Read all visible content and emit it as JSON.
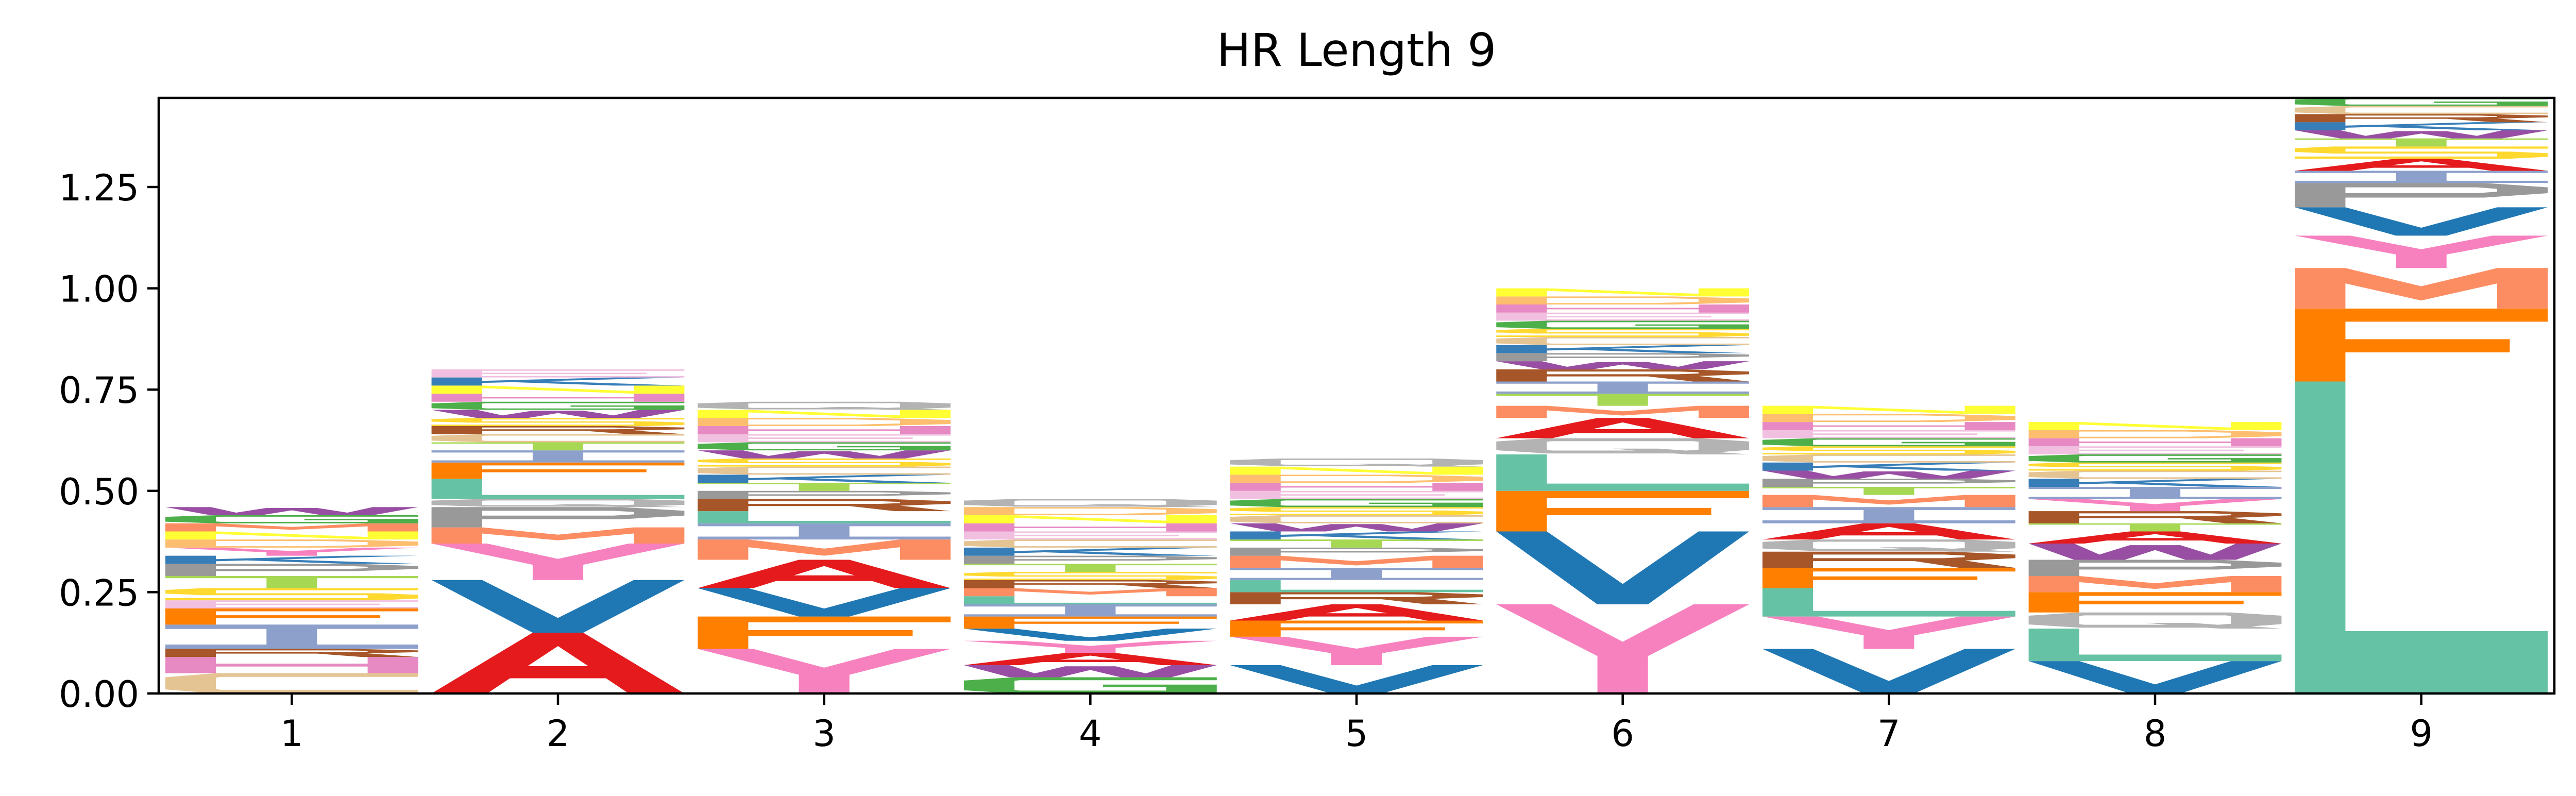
{
  "chart_data": {
    "type": "sequence-logo",
    "title": "HR Length 9",
    "xlabel": "",
    "ylabel": "",
    "ylim": [
      0,
      1.47
    ],
    "yticks": [
      {
        "value": 0.0,
        "label": "0.00"
      },
      {
        "value": 0.25,
        "label": "0.25"
      },
      {
        "value": 0.5,
        "label": "0.50"
      },
      {
        "value": 0.75,
        "label": "0.75"
      },
      {
        "value": 1.0,
        "label": "1.00"
      },
      {
        "value": 1.25,
        "label": "1.25"
      }
    ],
    "xticks": [
      "1",
      "2",
      "3",
      "4",
      "5",
      "6",
      "7",
      "8",
      "9"
    ],
    "colors": {
      "A": "#e41a1c",
      "V": "#1f78b4",
      "L": "#66c2a5",
      "I": "#8da0cb",
      "F": "#ff7f00",
      "M": "#fc8d62",
      "Y": "#f781bf",
      "G": "#4daf4a",
      "W": "#984ea3",
      "P": "#999999",
      "S": "#ffd92f",
      "T": "#a6d854",
      "C": "#e5c494",
      "R": "#a65628",
      "K": "#377eb8",
      "E": "#f1c0e0",
      "Q": "#b3b3b3",
      "N": "#ffff33",
      "H": "#e78ac3",
      "D": "#fdbf6f"
    },
    "positions": [
      {
        "position": "1",
        "letters": [
          {
            "letter": "C",
            "height": 0.05
          },
          {
            "letter": "H",
            "height": 0.04
          },
          {
            "letter": "R",
            "height": 0.02
          },
          {
            "letter": "I",
            "height": 0.06
          },
          {
            "letter": "F",
            "height": 0.04
          },
          {
            "letter": "E",
            "height": 0.02
          },
          {
            "letter": "S",
            "height": 0.03
          },
          {
            "letter": "T",
            "height": 0.03
          },
          {
            "letter": "P",
            "height": 0.03
          },
          {
            "letter": "K",
            "height": 0.02
          },
          {
            "letter": "Y",
            "height": 0.02
          },
          {
            "letter": "D",
            "height": 0.02
          },
          {
            "letter": "N",
            "height": 0.02
          },
          {
            "letter": "M",
            "height": 0.02
          },
          {
            "letter": "G",
            "height": 0.02
          },
          {
            "letter": "W",
            "height": 0.02
          }
        ]
      },
      {
        "position": "2",
        "letters": [
          {
            "letter": "A",
            "height": 0.15
          },
          {
            "letter": "V",
            "height": 0.13
          },
          {
            "letter": "Y",
            "height": 0.09
          },
          {
            "letter": "M",
            "height": 0.04
          },
          {
            "letter": "P",
            "height": 0.05
          },
          {
            "letter": "Q",
            "height": 0.02
          },
          {
            "letter": "L",
            "height": 0.05
          },
          {
            "letter": "F",
            "height": 0.04
          },
          {
            "letter": "I",
            "height": 0.03
          },
          {
            "letter": "T",
            "height": 0.02
          },
          {
            "letter": "C",
            "height": 0.02
          },
          {
            "letter": "R",
            "height": 0.02
          },
          {
            "letter": "S",
            "height": 0.02
          },
          {
            "letter": "W",
            "height": 0.02
          },
          {
            "letter": "G",
            "height": 0.02
          },
          {
            "letter": "H",
            "height": 0.02
          },
          {
            "letter": "N",
            "height": 0.02
          },
          {
            "letter": "K",
            "height": 0.02
          },
          {
            "letter": "E",
            "height": 0.02
          }
        ]
      },
      {
        "position": "3",
        "letters": [
          {
            "letter": "Y",
            "height": 0.11
          },
          {
            "letter": "F",
            "height": 0.08
          },
          {
            "letter": "V",
            "height": 0.07
          },
          {
            "letter": "A",
            "height": 0.07
          },
          {
            "letter": "M",
            "height": 0.05
          },
          {
            "letter": "I",
            "height": 0.04
          },
          {
            "letter": "L",
            "height": 0.03
          },
          {
            "letter": "R",
            "height": 0.03
          },
          {
            "letter": "P",
            "height": 0.02
          },
          {
            "letter": "T",
            "height": 0.02
          },
          {
            "letter": "K",
            "height": 0.02
          },
          {
            "letter": "C",
            "height": 0.02
          },
          {
            "letter": "S",
            "height": 0.02
          },
          {
            "letter": "W",
            "height": 0.02
          },
          {
            "letter": "G",
            "height": 0.02
          },
          {
            "letter": "E",
            "height": 0.02
          },
          {
            "letter": "H",
            "height": 0.02
          },
          {
            "letter": "D",
            "height": 0.02
          },
          {
            "letter": "N",
            "height": 0.02
          },
          {
            "letter": "Q",
            "height": 0.02
          }
        ]
      },
      {
        "position": "4",
        "letters": [
          {
            "letter": "G",
            "height": 0.04
          },
          {
            "letter": "W",
            "height": 0.03
          },
          {
            "letter": "A",
            "height": 0.03
          },
          {
            "letter": "Y",
            "height": 0.03
          },
          {
            "letter": "V",
            "height": 0.03
          },
          {
            "letter": "F",
            "height": 0.03
          },
          {
            "letter": "I",
            "height": 0.03
          },
          {
            "letter": "L",
            "height": 0.02
          },
          {
            "letter": "M",
            "height": 0.02
          },
          {
            "letter": "R",
            "height": 0.02
          },
          {
            "letter": "S",
            "height": 0.02
          },
          {
            "letter": "T",
            "height": 0.02
          },
          {
            "letter": "P",
            "height": 0.02
          },
          {
            "letter": "K",
            "height": 0.02
          },
          {
            "letter": "C",
            "height": 0.02
          },
          {
            "letter": "E",
            "height": 0.02
          },
          {
            "letter": "H",
            "height": 0.02
          },
          {
            "letter": "N",
            "height": 0.02
          },
          {
            "letter": "D",
            "height": 0.02
          },
          {
            "letter": "Q",
            "height": 0.02
          }
        ]
      },
      {
        "position": "5",
        "letters": [
          {
            "letter": "V",
            "height": 0.07
          },
          {
            "letter": "Y",
            "height": 0.07
          },
          {
            "letter": "F",
            "height": 0.04
          },
          {
            "letter": "A",
            "height": 0.04
          },
          {
            "letter": "R",
            "height": 0.03
          },
          {
            "letter": "L",
            "height": 0.03
          },
          {
            "letter": "I",
            "height": 0.03
          },
          {
            "letter": "M",
            "height": 0.03
          },
          {
            "letter": "P",
            "height": 0.02
          },
          {
            "letter": "T",
            "height": 0.02
          },
          {
            "letter": "K",
            "height": 0.02
          },
          {
            "letter": "W",
            "height": 0.02
          },
          {
            "letter": "C",
            "height": 0.02
          },
          {
            "letter": "S",
            "height": 0.02
          },
          {
            "letter": "G",
            "height": 0.02
          },
          {
            "letter": "E",
            "height": 0.02
          },
          {
            "letter": "H",
            "height": 0.02
          },
          {
            "letter": "D",
            "height": 0.02
          },
          {
            "letter": "N",
            "height": 0.02
          },
          {
            "letter": "Q",
            "height": 0.02
          }
        ]
      },
      {
        "position": "6",
        "letters": [
          {
            "letter": "Y",
            "height": 0.22
          },
          {
            "letter": "V",
            "height": 0.18
          },
          {
            "letter": "F",
            "height": 0.1
          },
          {
            "letter": "L",
            "height": 0.09
          },
          {
            "letter": "Q",
            "height": 0.04
          },
          {
            "letter": "A",
            "height": 0.05
          },
          {
            "letter": "M",
            "height": 0.03
          },
          {
            "letter": "T",
            "height": 0.03
          },
          {
            "letter": "I",
            "height": 0.03
          },
          {
            "letter": "R",
            "height": 0.03
          },
          {
            "letter": "W",
            "height": 0.02
          },
          {
            "letter": "P",
            "height": 0.02
          },
          {
            "letter": "K",
            "height": 0.02
          },
          {
            "letter": "C",
            "height": 0.02
          },
          {
            "letter": "S",
            "height": 0.02
          },
          {
            "letter": "G",
            "height": 0.02
          },
          {
            "letter": "E",
            "height": 0.02
          },
          {
            "letter": "H",
            "height": 0.02
          },
          {
            "letter": "D",
            "height": 0.02
          },
          {
            "letter": "N",
            "height": 0.02
          }
        ]
      },
      {
        "position": "7",
        "letters": [
          {
            "letter": "V",
            "height": 0.11
          },
          {
            "letter": "Y",
            "height": 0.08
          },
          {
            "letter": "L",
            "height": 0.07
          },
          {
            "letter": "F",
            "height": 0.05
          },
          {
            "letter": "R",
            "height": 0.04
          },
          {
            "letter": "Q",
            "height": 0.03
          },
          {
            "letter": "A",
            "height": 0.04
          },
          {
            "letter": "I",
            "height": 0.04
          },
          {
            "letter": "M",
            "height": 0.03
          },
          {
            "letter": "T",
            "height": 0.02
          },
          {
            "letter": "P",
            "height": 0.02
          },
          {
            "letter": "W",
            "height": 0.02
          },
          {
            "letter": "K",
            "height": 0.02
          },
          {
            "letter": "C",
            "height": 0.02
          },
          {
            "letter": "S",
            "height": 0.02
          },
          {
            "letter": "G",
            "height": 0.02
          },
          {
            "letter": "E",
            "height": 0.02
          },
          {
            "letter": "H",
            "height": 0.02
          },
          {
            "letter": "D",
            "height": 0.02
          },
          {
            "letter": "N",
            "height": 0.02
          }
        ]
      },
      {
        "position": "8",
        "letters": [
          {
            "letter": "V",
            "height": 0.08
          },
          {
            "letter": "L",
            "height": 0.08
          },
          {
            "letter": "Q",
            "height": 0.04
          },
          {
            "letter": "F",
            "height": 0.05
          },
          {
            "letter": "M",
            "height": 0.04
          },
          {
            "letter": "P",
            "height": 0.04
          },
          {
            "letter": "W",
            "height": 0.04
          },
          {
            "letter": "A",
            "height": 0.03
          },
          {
            "letter": "T",
            "height": 0.02
          },
          {
            "letter": "R",
            "height": 0.03
          },
          {
            "letter": "Y",
            "height": 0.03
          },
          {
            "letter": "I",
            "height": 0.03
          },
          {
            "letter": "K",
            "height": 0.02
          },
          {
            "letter": "C",
            "height": 0.02
          },
          {
            "letter": "S",
            "height": 0.02
          },
          {
            "letter": "G",
            "height": 0.02
          },
          {
            "letter": "E",
            "height": 0.02
          },
          {
            "letter": "H",
            "height": 0.02
          },
          {
            "letter": "D",
            "height": 0.02
          },
          {
            "letter": "N",
            "height": 0.02
          }
        ]
      },
      {
        "position": "9",
        "letters": [
          {
            "letter": "L",
            "height": 0.77
          },
          {
            "letter": "F",
            "height": 0.18
          },
          {
            "letter": "M",
            "height": 0.1
          },
          {
            "letter": "Y",
            "height": 0.08
          },
          {
            "letter": "V",
            "height": 0.07
          },
          {
            "letter": "P",
            "height": 0.06
          },
          {
            "letter": "I",
            "height": 0.03
          },
          {
            "letter": "A",
            "height": 0.03
          },
          {
            "letter": "S",
            "height": 0.03
          },
          {
            "letter": "T",
            "height": 0.02
          },
          {
            "letter": "W",
            "height": 0.02
          },
          {
            "letter": "K",
            "height": 0.02
          },
          {
            "letter": "R",
            "height": 0.02
          },
          {
            "letter": "C",
            "height": 0.02
          },
          {
            "letter": "G",
            "height": 0.02
          },
          {
            "letter": "E",
            "height": 0.02
          },
          {
            "letter": "H",
            "height": 0.02
          },
          {
            "letter": "D",
            "height": 0.02
          },
          {
            "letter": "N",
            "height": 0.02
          },
          {
            "letter": "Q",
            "height": 0.02
          }
        ]
      }
    ]
  }
}
